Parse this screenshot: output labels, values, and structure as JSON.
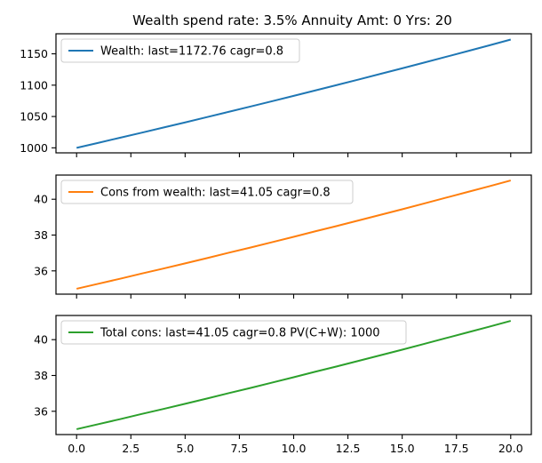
{
  "title": "Wealth spend rate: 3.5%  Annuity Amt: 0  Yrs: 20",
  "chart_data": [
    {
      "type": "line",
      "grid": false,
      "legend_position": "upper-left",
      "xlim": [
        -0.95,
        20.95
      ],
      "ylim": [
        992,
        1182
      ],
      "x_ticks": [
        0.0,
        2.5,
        5.0,
        7.5,
        10.0,
        12.5,
        15.0,
        17.5,
        20.0
      ],
      "x_tick_labels_shown": false,
      "y_ticks": [
        1000,
        1050,
        1100,
        1150
      ],
      "series": [
        {
          "name": "Wealth: last=1172.76 cagr=0.8",
          "color": "#1f77b4",
          "x": [
            0,
            1,
            2,
            3,
            4,
            5,
            6,
            7,
            8,
            9,
            10,
            11,
            12,
            13,
            14,
            15,
            16,
            17,
            18,
            19,
            20
          ],
          "y": [
            1000,
            1008.0,
            1016.1,
            1024.2,
            1032.4,
            1040.6,
            1049.0,
            1057.4,
            1065.8,
            1074.3,
            1082.9,
            1091.6,
            1100.3,
            1109.1,
            1118.0,
            1126.9,
            1135.9,
            1145.0,
            1154.2,
            1163.4,
            1172.76
          ]
        }
      ]
    },
    {
      "type": "line",
      "grid": false,
      "legend_position": "upper-left",
      "xlim": [
        -0.95,
        20.95
      ],
      "ylim": [
        34.7,
        41.35
      ],
      "x_ticks": [
        0.0,
        2.5,
        5.0,
        7.5,
        10.0,
        12.5,
        15.0,
        17.5,
        20.0
      ],
      "x_tick_labels_shown": false,
      "y_ticks": [
        36,
        38,
        40
      ],
      "series": [
        {
          "name": "Cons from wealth: last=41.05 cagr=0.8",
          "color": "#ff7f0e",
          "x": [
            0,
            1,
            2,
            3,
            4,
            5,
            6,
            7,
            8,
            9,
            10,
            11,
            12,
            13,
            14,
            15,
            16,
            17,
            18,
            19,
            20
          ],
          "y": [
            35.0,
            35.28,
            35.56,
            35.85,
            36.13,
            36.42,
            36.71,
            37.01,
            37.3,
            37.6,
            37.9,
            38.21,
            38.51,
            38.82,
            39.13,
            39.44,
            39.76,
            40.08,
            40.4,
            40.72,
            41.05
          ]
        }
      ]
    },
    {
      "type": "line",
      "grid": false,
      "legend_position": "upper-left",
      "xlim": [
        -0.95,
        20.95
      ],
      "ylim": [
        34.7,
        41.35
      ],
      "x_ticks": [
        0.0,
        2.5,
        5.0,
        7.5,
        10.0,
        12.5,
        15.0,
        17.5,
        20.0
      ],
      "x_tick_labels": [
        "0.0",
        "2.5",
        "5.0",
        "7.5",
        "10.0",
        "12.5",
        "15.0",
        "17.5",
        "20.0"
      ],
      "x_tick_labels_shown": true,
      "y_ticks": [
        36,
        38,
        40
      ],
      "series": [
        {
          "name": "Total cons: last=41.05 cagr=0.8 PV(C+W): 1000",
          "color": "#2ca02c",
          "x": [
            0,
            1,
            2,
            3,
            4,
            5,
            6,
            7,
            8,
            9,
            10,
            11,
            12,
            13,
            14,
            15,
            16,
            17,
            18,
            19,
            20
          ],
          "y": [
            35.0,
            35.28,
            35.56,
            35.85,
            36.13,
            36.42,
            36.71,
            37.01,
            37.3,
            37.6,
            37.9,
            38.21,
            38.51,
            38.82,
            39.13,
            39.44,
            39.76,
            40.08,
            40.4,
            40.72,
            41.05
          ]
        }
      ]
    }
  ]
}
